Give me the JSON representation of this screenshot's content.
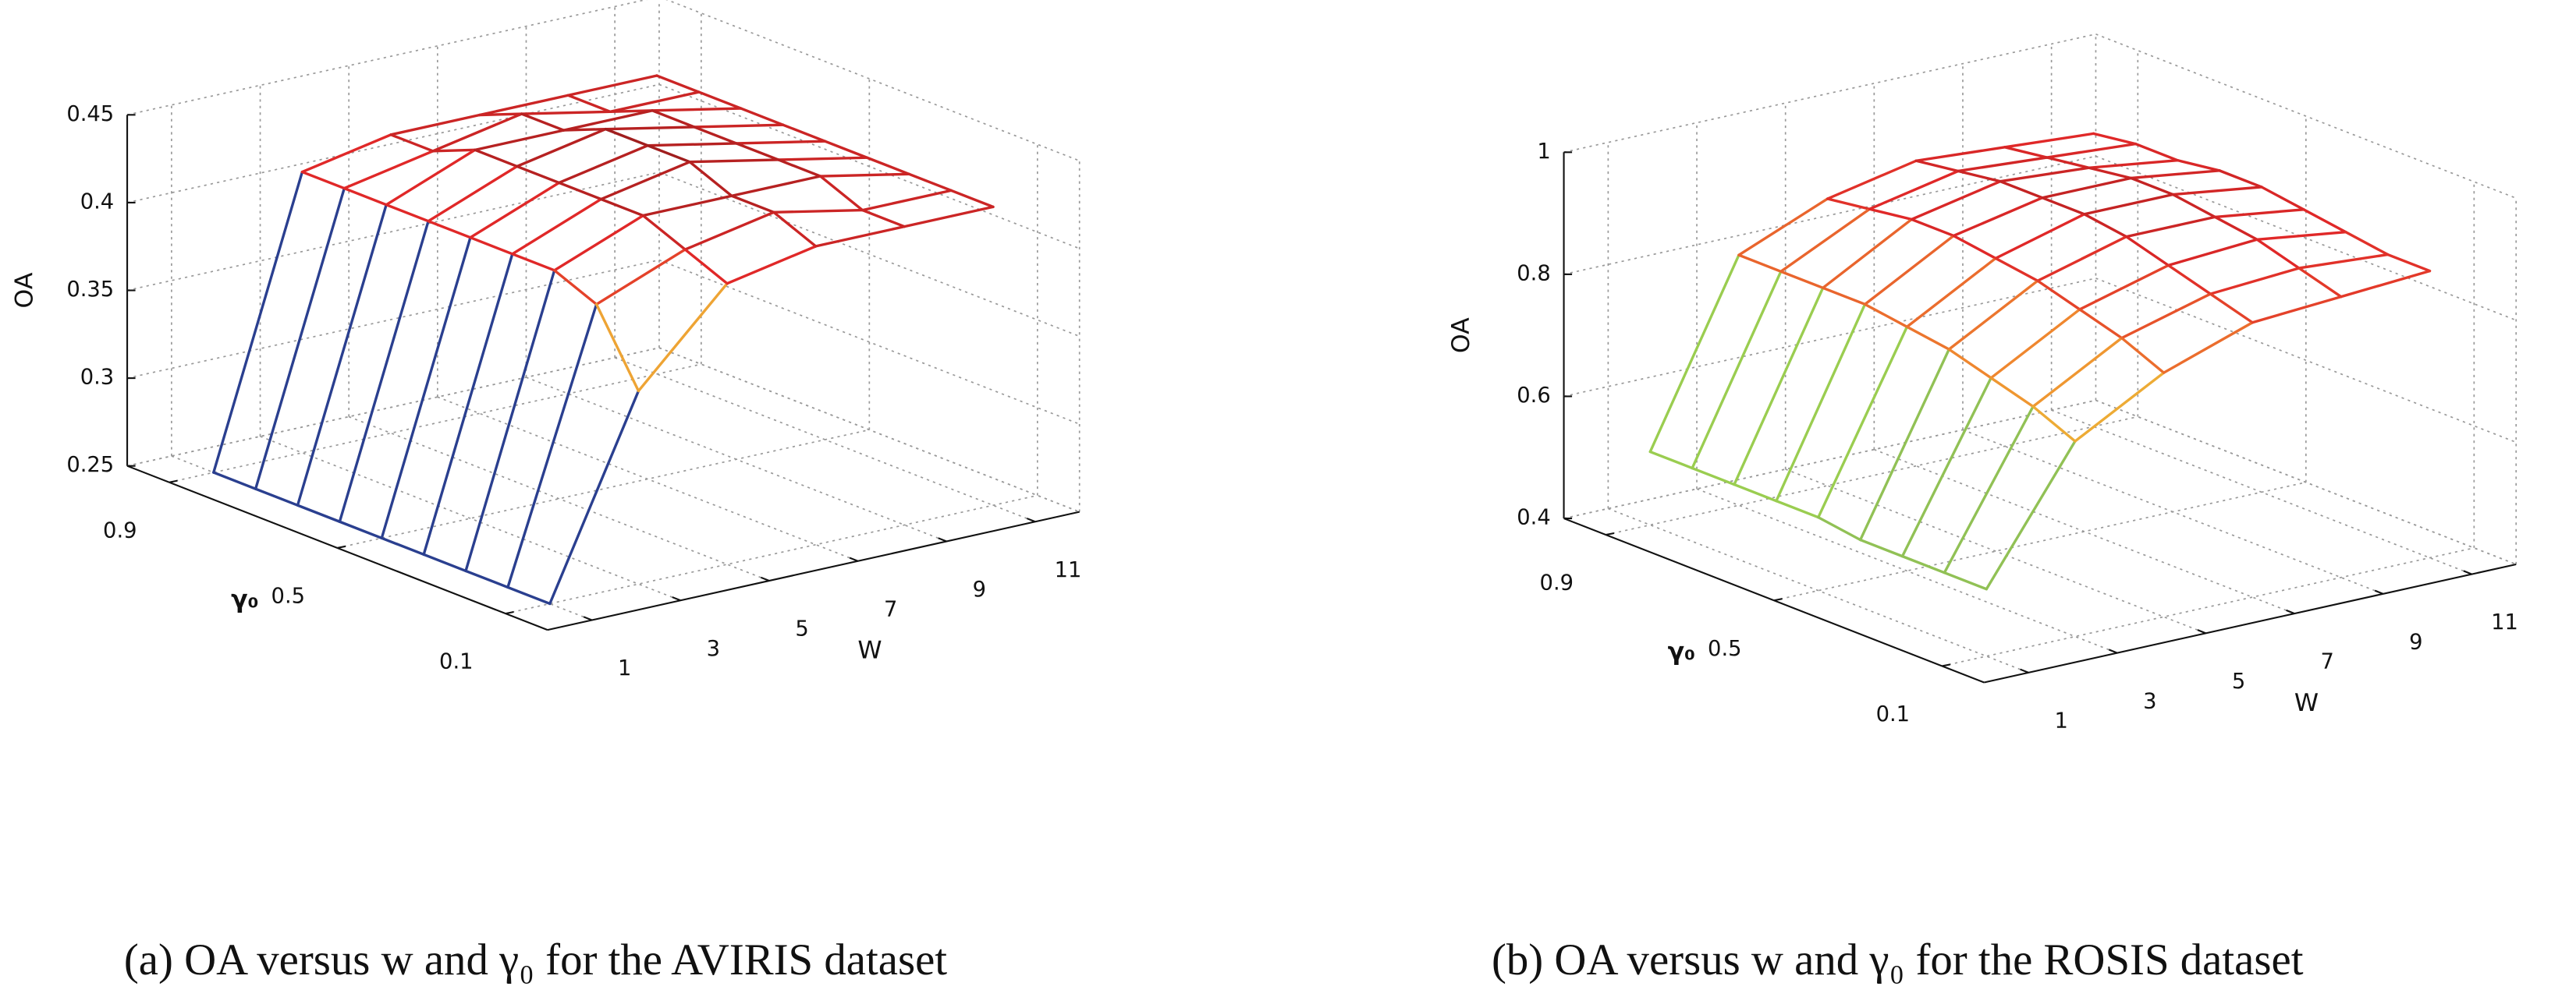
{
  "chart_data": [
    {
      "type": "surface",
      "caption": "(a) OA versus w and γ₀ for the AVIRIS dataset",
      "xlabel": "W",
      "ylabel": "γ₀",
      "zlabel": "OA",
      "xlim": [
        0,
        12
      ],
      "ylim": [
        0,
        1
      ],
      "zlim": [
        0.25,
        0.45
      ],
      "xticks": [
        1,
        3,
        5,
        7,
        9,
        11
      ],
      "yticks": [
        0.1,
        0.5,
        0.9
      ],
      "zticks": [
        0.25,
        0.3,
        0.35,
        0.4,
        0.45
      ],
      "x": [
        1,
        3,
        5,
        7,
        9,
        11
      ],
      "y": [
        0.1,
        0.2,
        0.3,
        0.4,
        0.5,
        0.6,
        0.7,
        0.8,
        0.9
      ],
      "values": [
        [
          0.25,
          0.36,
          0.41,
          0.42,
          0.42,
          0.42
        ],
        [
          0.25,
          0.4,
          0.42,
          0.43,
          0.42,
          0.42
        ],
        [
          0.25,
          0.41,
          0.43,
          0.43,
          0.43,
          0.42
        ],
        [
          0.25,
          0.41,
          0.43,
          0.44,
          0.43,
          0.42
        ],
        [
          0.25,
          0.41,
          0.43,
          0.44,
          0.43,
          0.42
        ],
        [
          0.25,
          0.41,
          0.43,
          0.44,
          0.43,
          0.42
        ],
        [
          0.25,
          0.41,
          0.43,
          0.43,
          0.43,
          0.42
        ],
        [
          0.25,
          0.41,
          0.42,
          0.43,
          0.42,
          0.42
        ],
        [
          0.25,
          0.41,
          0.42,
          0.42,
          0.42,
          0.42
        ]
      ],
      "colormap": [
        "#2a3f8f",
        "#9acd50",
        "#e8e040",
        "#f09030",
        "#e02828",
        "#8b1a1a"
      ],
      "grid": true
    },
    {
      "type": "surface",
      "caption": "(b) OA versus w and γ₀ for the ROSIS dataset",
      "xlabel": "W",
      "ylabel": "γ₀",
      "zlabel": "OA",
      "xlim": [
        0,
        12
      ],
      "ylim": [
        0,
        1
      ],
      "zlim": [
        0.4,
        1
      ],
      "xticks": [
        1,
        3,
        5,
        7,
        9,
        11
      ],
      "yticks": [
        0.1,
        0.5,
        0.9
      ],
      "zticks": [
        0.4,
        0.6,
        0.8,
        1
      ],
      "x": [
        1,
        3,
        5,
        7,
        9,
        11
      ],
      "y": [
        0.1,
        0.2,
        0.3,
        0.4,
        0.5,
        0.6,
        0.7,
        0.8,
        0.9
      ],
      "values": [
        [
          0.51,
          0.72,
          0.8,
          0.85,
          0.86,
          0.87
        ],
        [
          0.51,
          0.75,
          0.83,
          0.87,
          0.88,
          0.87
        ],
        [
          0.51,
          0.77,
          0.85,
          0.89,
          0.9,
          0.88
        ],
        [
          0.51,
          0.79,
          0.87,
          0.91,
          0.91,
          0.89
        ],
        [
          0.52,
          0.8,
          0.88,
          0.92,
          0.92,
          0.9
        ],
        [
          0.52,
          0.81,
          0.89,
          0.92,
          0.92,
          0.9
        ],
        [
          0.52,
          0.81,
          0.89,
          0.92,
          0.91,
          0.89
        ],
        [
          0.52,
          0.81,
          0.88,
          0.91,
          0.9,
          0.89
        ],
        [
          0.52,
          0.81,
          0.87,
          0.9,
          0.89,
          0.88
        ]
      ],
      "colormap": [
        "#2a3f8f",
        "#9acd50",
        "#e8e040",
        "#f09030",
        "#e02828",
        "#8b1a1a"
      ],
      "grid": true
    }
  ]
}
